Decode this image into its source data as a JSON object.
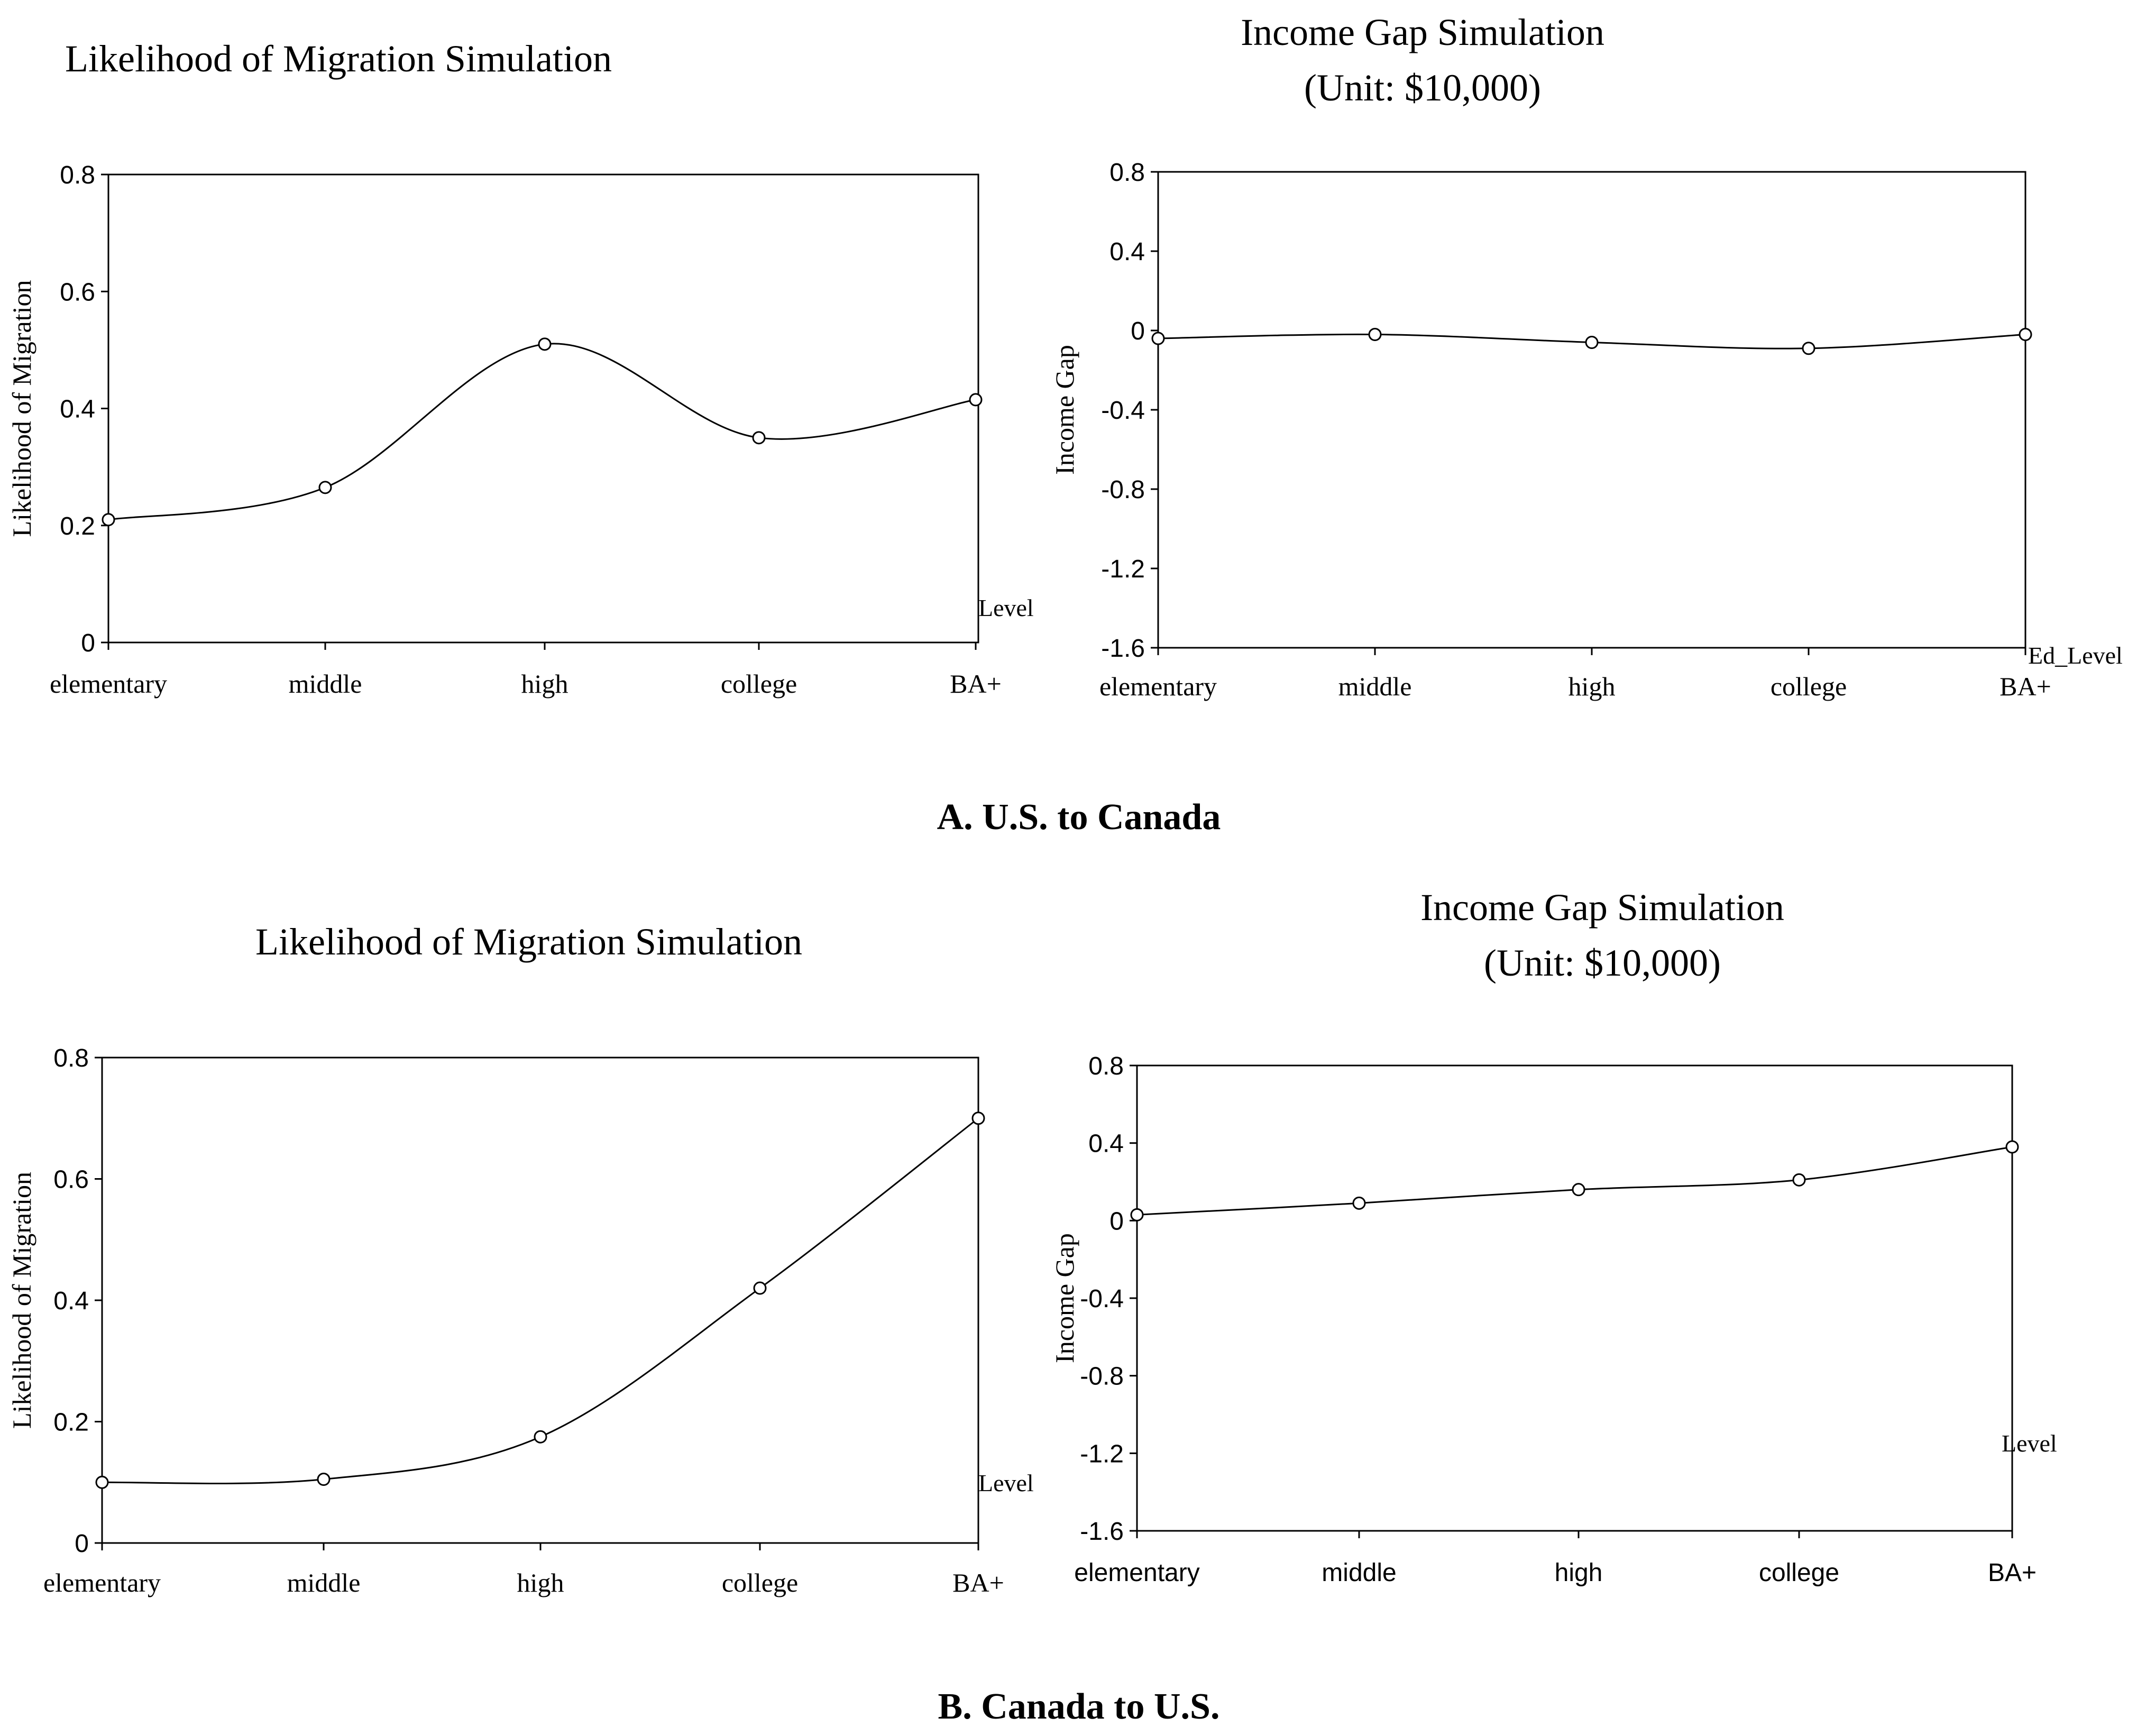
{
  "panels": [
    {
      "caption": "A. U.S. to Canada",
      "charts": [
        {
          "type": "line",
          "title_lines": [
            "Likelihood of Migration Simulation"
          ],
          "ylabel": "Likelihood of Migration",
          "xlabel": "Level",
          "categories": [
            "elementary",
            "middle",
            "high",
            "college",
            "BA+"
          ],
          "series": [
            {
              "name": "Likelihood of Migration",
              "values": [
                0.21,
                0.265,
                0.51,
                0.35,
                0.415
              ]
            }
          ],
          "ylim": [
            0,
            0.8
          ],
          "yticks": [
            0,
            0.2,
            0.4,
            0.6,
            0.8
          ],
          "ytick_labels": [
            "0",
            "0.2",
            "0.4",
            "0.6",
            "0.8"
          ],
          "grid": false
        },
        {
          "type": "line",
          "title_lines": [
            "Income Gap Simulation",
            "(Unit: $10,000)"
          ],
          "ylabel": "Income Gap",
          "xlabel": "Ed_Level",
          "categories": [
            "elementary",
            "middle",
            "high",
            "college",
            "BA+"
          ],
          "series": [
            {
              "name": "Income Gap",
              "values": [
                -0.04,
                -0.02,
                -0.06,
                -0.09,
                -0.02
              ]
            }
          ],
          "ylim": [
            -1.6,
            0.8
          ],
          "yticks": [
            -1.6,
            -1.2,
            -0.8,
            -0.4,
            0,
            0.4,
            0.8
          ],
          "ytick_labels": [
            "-1.6",
            "-1.2",
            "-0.8",
            "-0.4",
            "0",
            "0.4",
            "0.8"
          ],
          "grid": false
        }
      ]
    },
    {
      "caption": "B. Canada to U.S.",
      "charts": [
        {
          "type": "line",
          "title_lines": [
            "Likelihood of Migration Simulation"
          ],
          "ylabel": "Likelihood of Migration",
          "xlabel": "Level",
          "categories": [
            "elementary",
            "middle",
            "high",
            "college",
            "BA+"
          ],
          "series": [
            {
              "name": "Likelihood of Migration",
              "values": [
                0.1,
                0.105,
                0.175,
                0.42,
                0.7
              ]
            }
          ],
          "ylim": [
            0,
            0.8
          ],
          "yticks": [
            0,
            0.2,
            0.4,
            0.6,
            0.8
          ],
          "ytick_labels": [
            "0",
            "0.2",
            "0.4",
            "0.6",
            "0.8"
          ],
          "grid": false
        },
        {
          "type": "line",
          "title_lines": [
            "Income Gap Simulation",
            "(Unit: $10,000)"
          ],
          "ylabel": "Income Gap",
          "xlabel": "Level",
          "categories": [
            "elementary",
            "middle",
            "high",
            "college",
            "BA+"
          ],
          "series": [
            {
              "name": "Income Gap",
              "values": [
                0.03,
                0.09,
                0.16,
                0.21,
                0.38
              ]
            }
          ],
          "ylim": [
            -1.6,
            0.8
          ],
          "yticks": [
            -1.6,
            -1.2,
            -0.8,
            -0.4,
            0,
            0.4,
            0.8
          ],
          "ytick_labels": [
            "-1.6",
            "-1.2",
            "-0.8",
            "-0.4",
            "0",
            "0.4",
            "0.8"
          ],
          "grid": false
        }
      ]
    }
  ],
  "chart_data": [
    {
      "panel": "A. U.S. to Canada",
      "type": "line",
      "title": "Likelihood of Migration Simulation",
      "xlabel": "Level",
      "ylabel": "Likelihood of Migration",
      "categories": [
        "elementary",
        "middle",
        "high",
        "college",
        "BA+"
      ],
      "series": [
        {
          "name": "Likelihood of Migration",
          "values": [
            0.21,
            0.265,
            0.51,
            0.35,
            0.415
          ]
        }
      ],
      "ylim": [
        0,
        0.8
      ],
      "grid": false
    },
    {
      "panel": "A. U.S. to Canada",
      "type": "line",
      "title": "Income Gap Simulation (Unit: $10,000)",
      "xlabel": "Ed_Level",
      "ylabel": "Income Gap",
      "categories": [
        "elementary",
        "middle",
        "high",
        "college",
        "BA+"
      ],
      "series": [
        {
          "name": "Income Gap",
          "values": [
            -0.04,
            -0.02,
            -0.06,
            -0.09,
            -0.02
          ]
        }
      ],
      "ylim": [
        -1.6,
        0.8
      ],
      "grid": false
    },
    {
      "panel": "B. Canada to U.S.",
      "type": "line",
      "title": "Likelihood of Migration Simulation",
      "xlabel": "Level",
      "ylabel": "Likelihood of Migration",
      "categories": [
        "elementary",
        "middle",
        "high",
        "college",
        "BA+"
      ],
      "series": [
        {
          "name": "Likelihood of Migration",
          "values": [
            0.1,
            0.105,
            0.175,
            0.42,
            0.7
          ]
        }
      ],
      "ylim": [
        0,
        0.8
      ],
      "grid": false
    },
    {
      "panel": "B. Canada to U.S.",
      "type": "line",
      "title": "Income Gap Simulation (Unit: $10,000)",
      "xlabel": "Level",
      "ylabel": "Income Gap",
      "categories": [
        "elementary",
        "middle",
        "high",
        "college",
        "BA+"
      ],
      "series": [
        {
          "name": "Income Gap",
          "values": [
            0.03,
            0.09,
            0.16,
            0.21,
            0.38
          ]
        }
      ],
      "ylim": [
        -1.6,
        0.8
      ],
      "grid": false
    }
  ]
}
